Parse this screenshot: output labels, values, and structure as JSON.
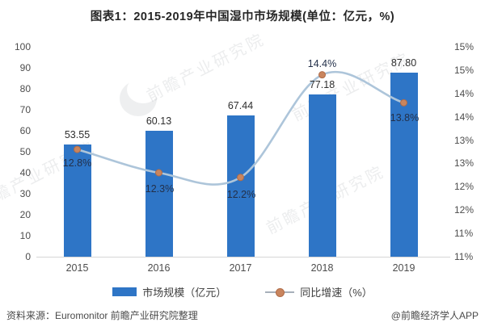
{
  "title": "图表1：2015-2019年中国湿巾市场规模(单位：亿元，%)",
  "chart_data": {
    "type": "bar",
    "combo": "bar+line",
    "categories": [
      "2015",
      "2016",
      "2017",
      "2018",
      "2019"
    ],
    "series": [
      {
        "name": "市场规模（亿元）",
        "chart_type": "bar",
        "axis": "left",
        "color": "#2e75c6",
        "values": [
          53.55,
          60.13,
          67.44,
          77.18,
          87.8
        ],
        "labels": [
          "53.55",
          "60.13",
          "67.44",
          "77.18",
          "87.80"
        ]
      },
      {
        "name": "同比增速（%）",
        "chart_type": "line",
        "axis": "right",
        "line_color": "#adc5da",
        "marker_color": "#c9855e",
        "marker_edge": "#b06c48",
        "values": [
          12.8,
          12.3,
          12.2,
          14.4,
          13.8
        ],
        "labels": [
          "12.8%",
          "12.3%",
          "12.2%",
          "14.4%",
          "13.8%"
        ],
        "label_offsets": [
          [
            0,
            17
          ],
          [
            1,
            20
          ],
          [
            1,
            21
          ],
          [
            0,
            -14
          ],
          [
            1,
            19
          ]
        ]
      }
    ],
    "left_axis": {
      "min": 0,
      "max": 100,
      "ticks": [
        "100",
        "90",
        "80",
        "70",
        "60",
        "50",
        "40",
        "30",
        "20",
        "10",
        "0"
      ]
    },
    "right_axis": {
      "min": 10.5,
      "max": 15,
      "ticks": [
        "15%",
        "15%",
        "14%",
        "14%",
        "13%",
        "13%",
        "12%",
        "12%",
        "11%",
        "11%"
      ]
    },
    "grid": "off",
    "legend_position": "bottom"
  },
  "watermark": {
    "text": "前瞻产业研究院"
  },
  "footer": {
    "source": "资料来源：Euromonitor 前瞻产业研究院整理",
    "credit": "@前瞻经济学人APP"
  }
}
